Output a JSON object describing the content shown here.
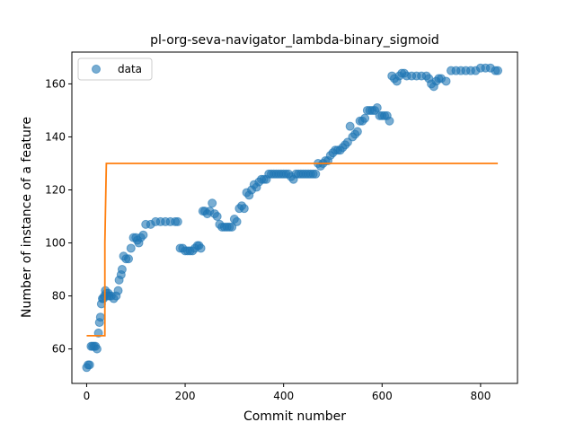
{
  "chart_data": {
    "type": "scatter",
    "title": "pl-org-seva-navigator_lambda-binary_sigmoid",
    "xlabel": "Commit number",
    "ylabel": "Number of instance of a feature",
    "xlim": [
      -30,
      875
    ],
    "ylim": [
      47,
      172
    ],
    "xticks": [
      0,
      200,
      400,
      600,
      800
    ],
    "yticks": [
      60,
      80,
      100,
      120,
      140,
      160
    ],
    "grid": false,
    "legend": {
      "position": "top-left",
      "entries": [
        "data"
      ]
    },
    "colors": {
      "data": "#1f77b4",
      "fit": "#ff7f0e"
    },
    "series": [
      {
        "name": "data",
        "kind": "points",
        "x": [
          0,
          3,
          6,
          9,
          12,
          15,
          18,
          21,
          24,
          26,
          28,
          30,
          32,
          34,
          36,
          38,
          40,
          42,
          44,
          46,
          50,
          55,
          60,
          64,
          66,
          70,
          72,
          75,
          80,
          85,
          90,
          95,
          100,
          103,
          106,
          110,
          115,
          120,
          130,
          140,
          150,
          160,
          170,
          180,
          185,
          190,
          195,
          200,
          205,
          210,
          215,
          220,
          225,
          228,
          232,
          236,
          240,
          245,
          250,
          255,
          260,
          265,
          270,
          275,
          280,
          285,
          290,
          295,
          300,
          305,
          310,
          315,
          320,
          325,
          330,
          335,
          340,
          345,
          350,
          355,
          360,
          365,
          370,
          375,
          380,
          385,
          390,
          395,
          400,
          405,
          410,
          415,
          420,
          425,
          430,
          435,
          440,
          445,
          450,
          455,
          460,
          465,
          470,
          475,
          480,
          485,
          490,
          495,
          500,
          505,
          510,
          515,
          520,
          525,
          530,
          535,
          540,
          545,
          550,
          555,
          560,
          565,
          570,
          575,
          580,
          585,
          590,
          595,
          600,
          605,
          610,
          615,
          620,
          625,
          630,
          635,
          640,
          645,
          650,
          660,
          670,
          680,
          690,
          695,
          700,
          705,
          710,
          715,
          720,
          730,
          740,
          750,
          760,
          770,
          780,
          790,
          800,
          810,
          820,
          830,
          835
        ],
        "y": [
          53,
          54,
          54,
          61,
          61,
          61,
          61,
          60,
          66,
          70,
          72,
          77,
          79,
          79,
          80,
          82,
          81,
          80,
          81,
          80,
          80,
          79,
          80,
          82,
          86,
          88,
          90,
          95,
          94,
          94,
          98,
          102,
          102,
          101,
          100,
          102,
          103,
          107,
          107,
          108,
          108,
          108,
          108,
          108,
          108,
          98,
          98,
          97,
          97,
          97,
          97,
          98,
          99,
          99,
          98,
          112,
          112,
          111,
          112,
          115,
          111,
          110,
          107,
          106,
          106,
          106,
          106,
          106,
          109,
          108,
          113,
          114,
          113,
          119,
          118,
          120,
          122,
          121,
          123,
          124,
          124,
          124,
          126,
          126,
          126,
          126,
          126,
          126,
          126,
          126,
          126,
          125,
          124,
          126,
          126,
          126,
          126,
          126,
          126,
          126,
          126,
          126,
          130,
          129,
          130,
          131,
          131,
          133,
          134,
          135,
          135,
          135,
          136,
          137,
          138,
          144,
          140,
          141,
          142,
          146,
          146,
          147,
          150,
          150,
          150,
          150,
          151,
          148,
          148,
          148,
          148,
          146,
          163,
          162,
          161,
          163,
          164,
          164,
          163,
          163,
          163,
          163,
          163,
          162,
          160,
          159,
          161,
          162,
          162,
          161,
          165,
          165,
          165,
          165,
          165,
          165,
          166,
          166,
          166,
          165,
          165
        ]
      },
      {
        "name": "",
        "kind": "step-line",
        "x": [
          0,
          37,
          37,
          40,
          835
        ],
        "y": [
          65,
          65,
          100,
          130,
          130
        ]
      }
    ]
  }
}
